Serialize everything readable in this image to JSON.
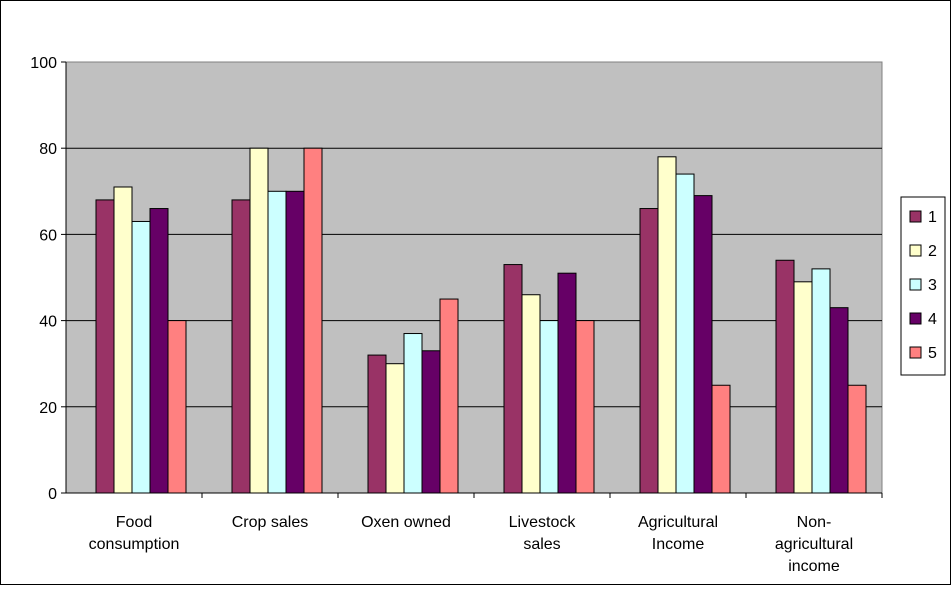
{
  "chart_data": {
    "type": "bar",
    "title": "",
    "xlabel": "",
    "ylabel": "",
    "ylim": [
      0,
      100
    ],
    "yticks": [
      0,
      20,
      40,
      60,
      80,
      100
    ],
    "grid": true,
    "legend_position": "right",
    "categories": [
      [
        "Food",
        "consumption"
      ],
      [
        "Crop sales"
      ],
      [
        "Oxen owned"
      ],
      [
        "Livestock",
        "sales"
      ],
      [
        "Agricultural",
        "Income"
      ],
      [
        "Non-",
        "agricultural",
        "income"
      ]
    ],
    "series": [
      {
        "name": "1",
        "color": "#993366",
        "values": [
          68,
          68,
          32,
          53,
          66,
          54
        ]
      },
      {
        "name": "2",
        "color": "#FFFFCC",
        "values": [
          71,
          80,
          30,
          46,
          78,
          49
        ]
      },
      {
        "name": "3",
        "color": "#CCFFFF",
        "values": [
          63,
          70,
          37,
          40,
          74,
          52
        ]
      },
      {
        "name": "4",
        "color": "#660066",
        "values": [
          66,
          70,
          33,
          51,
          69,
          43
        ]
      },
      {
        "name": "5",
        "color": "#FF8080",
        "values": [
          40,
          80,
          45,
          40,
          25,
          25
        ]
      }
    ],
    "colors": {
      "plot_background": "#C0C0C0",
      "gridline": "#000000",
      "bar_outline": "#000000"
    }
  }
}
